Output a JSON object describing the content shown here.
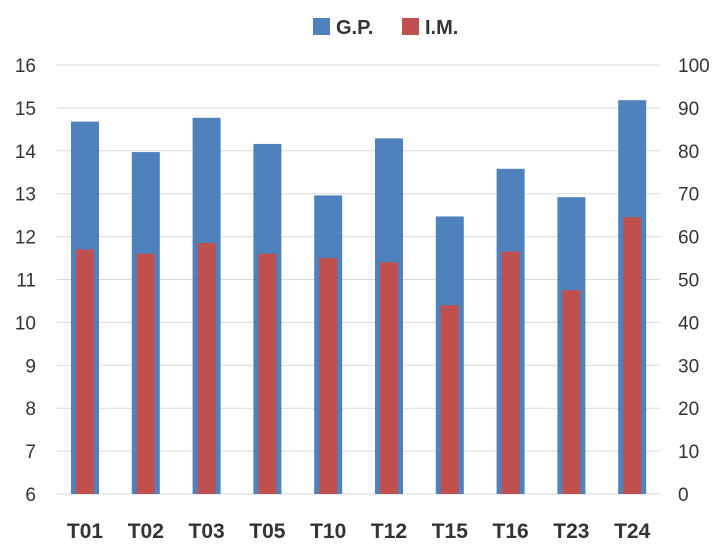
{
  "chart_data": {
    "type": "bar",
    "categories": [
      "T01",
      "T02",
      "T03",
      "T05",
      "T10",
      "T12",
      "T15",
      "T16",
      "T23",
      "T24"
    ],
    "series": [
      {
        "name": "G.P.",
        "axis": "left",
        "color": "#4f81bd",
        "values": [
          14.68,
          13.97,
          14.77,
          14.16,
          12.96,
          14.29,
          12.47,
          13.58,
          12.92,
          15.18
        ]
      },
      {
        "name": "I.M.",
        "axis": "right",
        "color": "#c0504d",
        "values": [
          57,
          56,
          58.5,
          56,
          55,
          54,
          44,
          56.5,
          47.5,
          64.5
        ]
      }
    ],
    "y_left": {
      "min": 6,
      "max": 16,
      "ticks": [
        "6",
        "7",
        "8",
        "9",
        "10",
        "11",
        "12",
        "13",
        "14",
        "15",
        "16"
      ]
    },
    "y_right": {
      "min": 0,
      "max": 100,
      "ticks": [
        "0",
        "10",
        "20",
        "30",
        "40",
        "50",
        "60",
        "70",
        "80",
        "90",
        "100"
      ]
    },
    "grid": true,
    "legend": "top-center",
    "title": "",
    "xlabel": "",
    "ylabel": ""
  }
}
